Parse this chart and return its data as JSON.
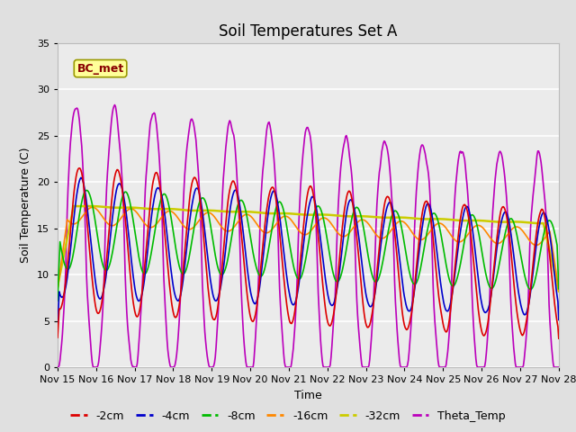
{
  "title": "Soil Temperatures Set A",
  "xlabel": "Time",
  "ylabel": "Soil Temperature (C)",
  "annotation": "BC_met",
  "ylim": [
    0,
    35
  ],
  "xlim": [
    0,
    13
  ],
  "x_tick_labels": [
    "Nov 15",
    "Nov 16",
    "Nov 17",
    "Nov 18",
    "Nov 19",
    "Nov 20",
    "Nov 21",
    "Nov 22",
    "Nov 23",
    "Nov 24",
    "Nov 25",
    "Nov 26",
    "Nov 27",
    "Nov 28"
  ],
  "series": {
    "-2cm": {
      "color": "#dd0000",
      "lw": 1.2
    },
    "-4cm": {
      "color": "#0000cc",
      "lw": 1.2
    },
    "-8cm": {
      "color": "#00bb00",
      "lw": 1.2
    },
    "-16cm": {
      "color": "#ff8800",
      "lw": 1.2
    },
    "-32cm": {
      "color": "#cccc00",
      "lw": 1.8
    },
    "Theta_Temp": {
      "color": "#bb00bb",
      "lw": 1.2
    }
  },
  "bg_color": "#e0e0e0",
  "plot_bg": "#ebebeb",
  "annotation_bg": "#ffff99",
  "annotation_fc": "#880000",
  "title_fontsize": 12,
  "label_fontsize": 9,
  "tick_fontsize": 8,
  "legend_fontsize": 9
}
